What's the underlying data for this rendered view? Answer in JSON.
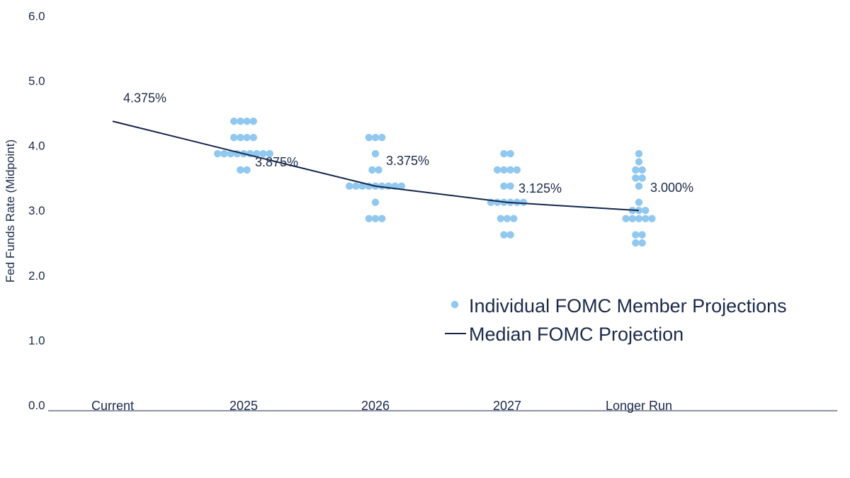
{
  "chart_data": {
    "type": "scatter",
    "ylabel": "Fed Funds Rate (Midpoint)",
    "ylim": [
      0,
      6
    ],
    "yticks": [
      "0.0",
      "1.0",
      "2.0",
      "3.0",
      "4.0",
      "5.0",
      "6.0"
    ],
    "categories": [
      "Current",
      "2025",
      "2026",
      "2027",
      "Longer Run"
    ],
    "colors": {
      "dots": "#90c8f0",
      "median": "#14264a",
      "axis": "#1b2a4a"
    },
    "series": [
      {
        "name": "Individual FOMC Member Projections",
        "type": "dot",
        "groups": [
          {
            "category": "2025",
            "values": [
              {
                "y": 4.375,
                "count": 4
              },
              {
                "y": 4.125,
                "count": 4
              },
              {
                "y": 3.875,
                "count": 9
              },
              {
                "y": 3.625,
                "count": 2
              }
            ]
          },
          {
            "category": "2026",
            "values": [
              {
                "y": 4.125,
                "count": 3
              },
              {
                "y": 3.875,
                "count": 1
              },
              {
                "y": 3.625,
                "count": 2
              },
              {
                "y": 3.375,
                "count": 9
              },
              {
                "y": 3.125,
                "count": 1
              },
              {
                "y": 2.875,
                "count": 3
              }
            ]
          },
          {
            "category": "2027",
            "values": [
              {
                "y": 3.875,
                "count": 2
              },
              {
                "y": 3.625,
                "count": 4
              },
              {
                "y": 3.375,
                "count": 2
              },
              {
                "y": 3.125,
                "count": 6
              },
              {
                "y": 2.875,
                "count": 3
              },
              {
                "y": 2.625,
                "count": 2
              }
            ]
          },
          {
            "category": "Longer Run",
            "values": [
              {
                "y": 3.875,
                "count": 1
              },
              {
                "y": 3.75,
                "count": 1
              },
              {
                "y": 3.625,
                "count": 2
              },
              {
                "y": 3.5,
                "count": 2
              },
              {
                "y": 3.375,
                "count": 1
              },
              {
                "y": 3.125,
                "count": 1
              },
              {
                "y": 3.0,
                "count": 3
              },
              {
                "y": 2.875,
                "count": 5
              },
              {
                "y": 2.625,
                "count": 2
              },
              {
                "y": 2.5,
                "count": 2
              }
            ]
          }
        ]
      },
      {
        "name": "Median FOMC Projection",
        "type": "line",
        "values": [
          4.375,
          3.875,
          3.375,
          3.125,
          3.0
        ],
        "labels": [
          "4.375%",
          "3.875%",
          "3.375%",
          "3.125%",
          "3.000%"
        ]
      }
    ],
    "legend": {
      "position": "lower-right",
      "items": [
        "Individual FOMC Member Projections",
        "Median FOMC Projection"
      ]
    }
  }
}
